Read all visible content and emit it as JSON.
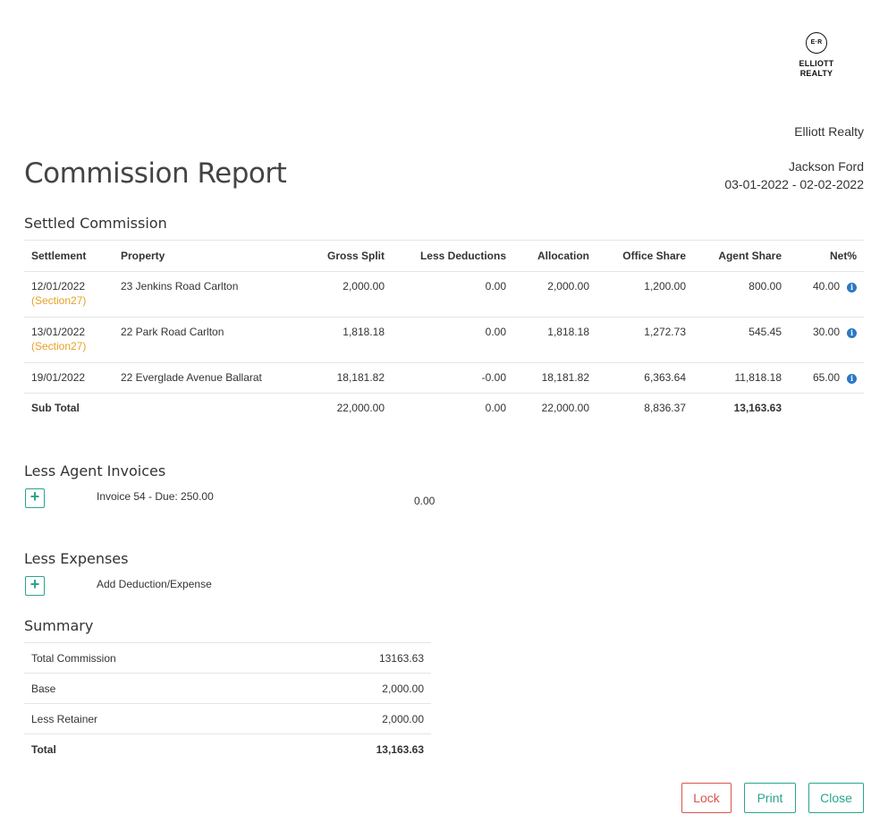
{
  "logo": {
    "mark": "E·R",
    "line1": "ELLIOTT",
    "line2": "REALTY"
  },
  "header": {
    "company": "Elliott Realty",
    "agent": "Jackson Ford",
    "date_range": "03-01-2022 - 02-02-2022",
    "title": "Commission Report"
  },
  "settled": {
    "title": "Settled Commission",
    "columns": [
      "Settlement",
      "Property",
      "Gross Split",
      "Less Deductions",
      "Allocation",
      "Office Share",
      "Agent Share",
      "Net%"
    ],
    "rows": [
      {
        "settlement": "12/01/2022",
        "tag": "(Section27)",
        "property": "23 Jenkins Road Carlton",
        "gross": "2,000.00",
        "deductions": "0.00",
        "allocation": "2,000.00",
        "office": "1,200.00",
        "agent": "800.00",
        "net": "40.00"
      },
      {
        "settlement": "13/01/2022",
        "tag": "(Section27)",
        "property": "22 Park Road Carlton",
        "gross": "1,818.18",
        "deductions": "0.00",
        "allocation": "1,818.18",
        "office": "1,272.73",
        "agent": "545.45",
        "net": "30.00"
      },
      {
        "settlement": "19/01/2022",
        "tag": "",
        "property": "22 Everglade Avenue Ballarat",
        "gross": "18,181.82",
        "deductions": "-0.00",
        "allocation": "18,181.82",
        "office": "6,363.64",
        "agent": "11,818.18",
        "net": "65.00"
      }
    ],
    "subtotal": {
      "label": "Sub Total",
      "gross": "22,000.00",
      "deductions": "0.00",
      "allocation": "22,000.00",
      "office": "8,836.37",
      "agent": "13,163.63"
    }
  },
  "invoices": {
    "title": "Less Agent Invoices",
    "item": "Invoice 54 - Due: 250.00",
    "amount": "0.00"
  },
  "expenses": {
    "title": "Less Expenses",
    "add_label": "Add Deduction/Expense"
  },
  "summary": {
    "title": "Summary",
    "rows": [
      {
        "label": "Total Commission",
        "value": "13163.63"
      },
      {
        "label": "Base",
        "value": "2,000.00"
      },
      {
        "label": "Less Retainer",
        "value": "2,000.00"
      }
    ],
    "total": {
      "label": "Total",
      "value": "13,163.63"
    }
  },
  "buttons": {
    "lock": "Lock",
    "print": "Print",
    "close": "Close"
  },
  "icons": {
    "info": "info-icon",
    "add": "plus-icon"
  },
  "colors": {
    "accent": "#2aa58e",
    "danger": "#d9534f",
    "section27": "#e8a025",
    "info": "#2b78c5"
  }
}
